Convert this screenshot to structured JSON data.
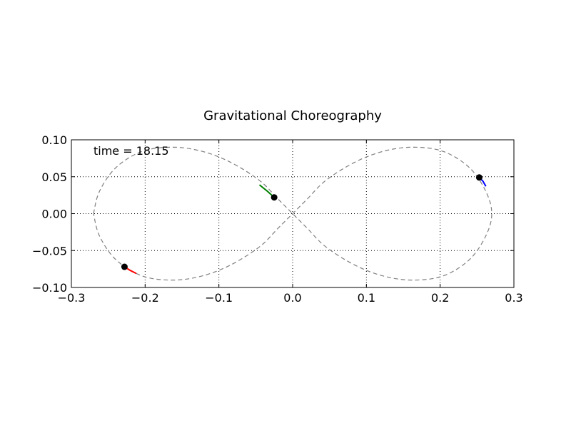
{
  "chart_data": {
    "type": "line",
    "title": "Gravitational Choreography",
    "xlabel": "",
    "ylabel": "",
    "xlim": [
      -0.3,
      0.3
    ],
    "ylim": [
      -0.1,
      0.1
    ],
    "xticks": [
      -0.3,
      -0.2,
      -0.1,
      0.0,
      0.1,
      0.2,
      0.3
    ],
    "xtick_labels": [
      "−0.3",
      "−0.2",
      "−0.1",
      "0.0",
      "0.1",
      "0.2",
      "0.3"
    ],
    "yticks": [
      -0.1,
      -0.05,
      0.0,
      0.05,
      0.1
    ],
    "ytick_labels": [
      "−0.10",
      "−0.05",
      "0.00",
      "0.05",
      "0.10"
    ],
    "grid": true,
    "annotation": "time = 18.15",
    "orbit": {
      "style": "dashed",
      "color": "#808080",
      "points": [
        [
          -0.27,
          0.0
        ],
        [
          -0.262,
          0.03
        ],
        [
          -0.24,
          0.062
        ],
        [
          -0.205,
          0.084
        ],
        [
          -0.165,
          0.09
        ],
        [
          -0.125,
          0.085
        ],
        [
          -0.085,
          0.07
        ],
        [
          -0.045,
          0.045
        ],
        [
          -0.02,
          0.02
        ],
        [
          0.0,
          0.0
        ],
        [
          0.02,
          -0.02
        ],
        [
          0.045,
          -0.045
        ],
        [
          0.085,
          -0.07
        ],
        [
          0.125,
          -0.085
        ],
        [
          0.165,
          -0.09
        ],
        [
          0.205,
          -0.084
        ],
        [
          0.24,
          -0.062
        ],
        [
          0.262,
          -0.03
        ],
        [
          0.27,
          0.0
        ],
        [
          0.262,
          0.03
        ],
        [
          0.24,
          0.062
        ],
        [
          0.205,
          0.084
        ],
        [
          0.165,
          0.09
        ],
        [
          0.125,
          0.085
        ],
        [
          0.085,
          0.07
        ],
        [
          0.045,
          0.045
        ],
        [
          0.02,
          0.02
        ],
        [
          0.0,
          0.0
        ],
        [
          -0.02,
          -0.02
        ],
        [
          -0.045,
          -0.045
        ],
        [
          -0.085,
          -0.07
        ],
        [
          -0.125,
          -0.085
        ],
        [
          -0.165,
          -0.09
        ],
        [
          -0.205,
          -0.084
        ],
        [
          -0.24,
          -0.062
        ],
        [
          -0.262,
          -0.03
        ],
        [
          -0.27,
          0.0
        ]
      ]
    },
    "bodies": [
      {
        "color": "#0000ff",
        "position": [
          0.253,
          0.049
        ],
        "trail": [
          [
            0.253,
            0.049
          ],
          [
            0.258,
            0.044
          ],
          [
            0.262,
            0.037
          ]
        ]
      },
      {
        "color": "#008000",
        "position": [
          -0.025,
          0.022
        ],
        "trail": [
          [
            -0.025,
            0.022
          ],
          [
            -0.035,
            0.031
          ],
          [
            -0.045,
            0.039
          ]
        ]
      },
      {
        "color": "#ff0000",
        "position": [
          -0.228,
          -0.072
        ],
        "trail": [
          [
            -0.228,
            -0.072
          ],
          [
            -0.22,
            -0.077
          ],
          [
            -0.212,
            -0.081
          ]
        ]
      }
    ]
  }
}
